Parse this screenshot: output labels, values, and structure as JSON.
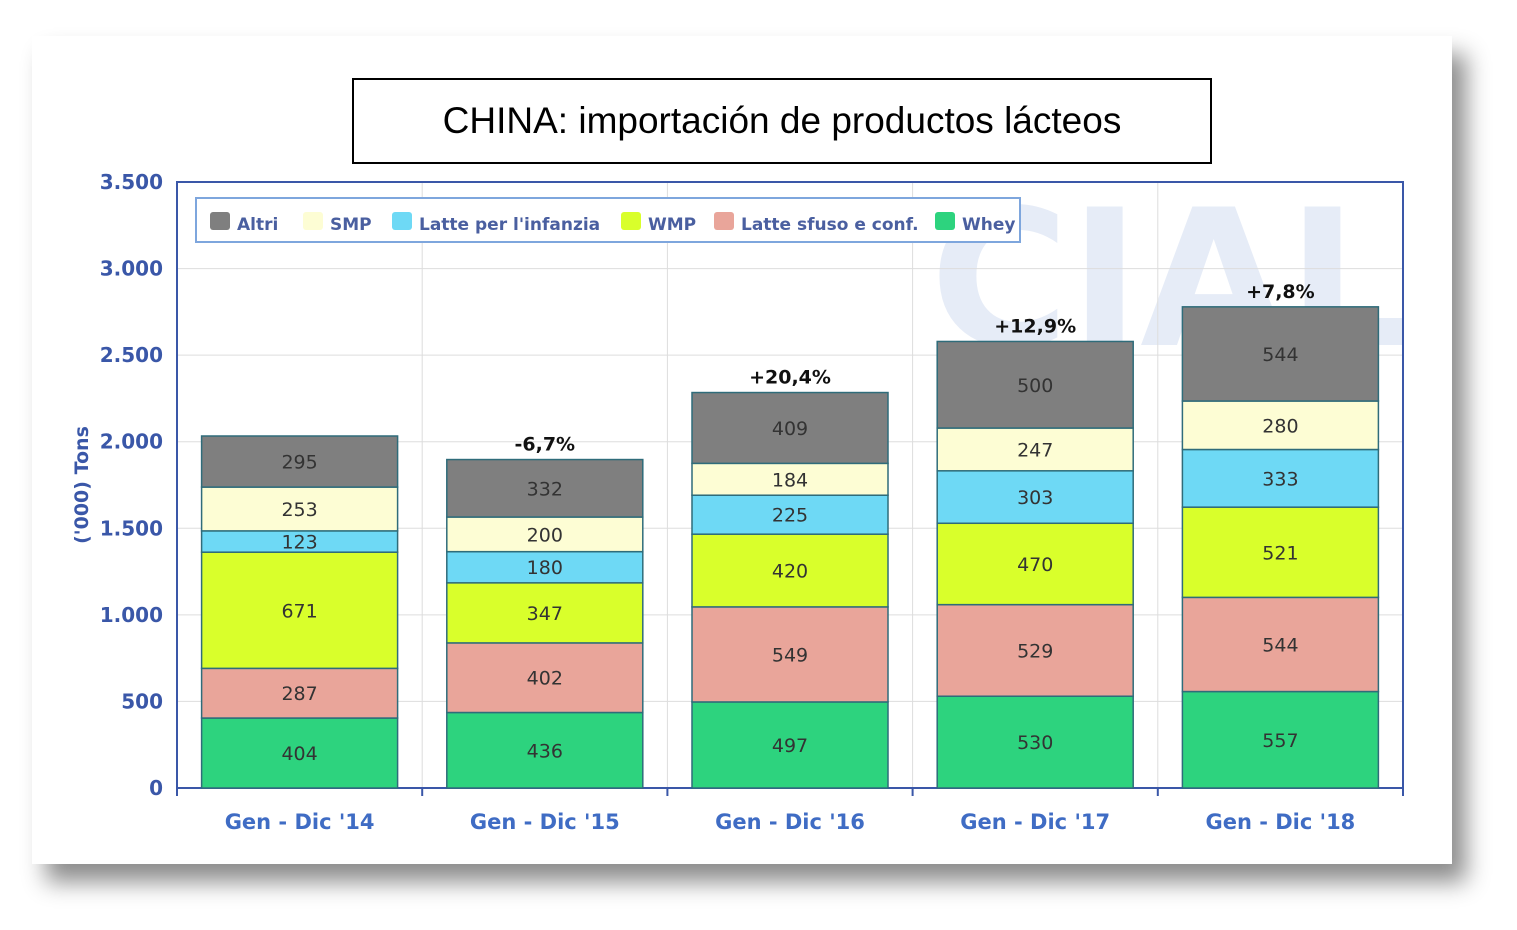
{
  "title": "CHINA: importación de productos lácteos",
  "chart_data": {
    "type": "bar",
    "stacked": true,
    "categories": [
      "Gen - Dic '14",
      "Gen - Dic '15",
      "Gen - Dic '16",
      "Gen - Dic '17",
      "Gen - Dic '18"
    ],
    "series": [
      {
        "name": "Whey",
        "color": "#2dd37e",
        "values": [
          404,
          436,
          497,
          530,
          557
        ]
      },
      {
        "name": "Latte sfuso e conf.",
        "color": "#e9a59a",
        "values": [
          287,
          402,
          549,
          529,
          544
        ]
      },
      {
        "name": "WMP",
        "color": "#d9ff2b",
        "values": [
          671,
          347,
          420,
          470,
          521
        ]
      },
      {
        "name": "Latte per l'infanzia",
        "color": "#6ed9f5",
        "values": [
          123,
          180,
          225,
          303,
          333
        ]
      },
      {
        "name": "SMP",
        "color": "#fdfdd4",
        "values": [
          253,
          200,
          184,
          247,
          280
        ]
      },
      {
        "name": "Altri",
        "color": "#7f7f7f",
        "values": [
          295,
          332,
          409,
          500,
          544
        ]
      }
    ],
    "legend_order": [
      "Altri",
      "SMP",
      "Latte per l'infanzia",
      "WMP",
      "Latte sfuso e conf.",
      "Whey"
    ],
    "annotations": [
      "",
      "-6,7%",
      "+20,4%",
      "+12,9%",
      "+7,8%"
    ],
    "ylabel": "('000) Tons",
    "ylim": [
      0,
      3500
    ],
    "yticks": [
      0,
      500,
      1000,
      1500,
      2000,
      2500,
      3000,
      3500
    ],
    "ytick_labels": [
      "0",
      "500",
      "1.000",
      "1.500",
      "2.000",
      "2.500",
      "3.000",
      "3.500"
    ],
    "grid": true,
    "legend_position": "top-left"
  }
}
